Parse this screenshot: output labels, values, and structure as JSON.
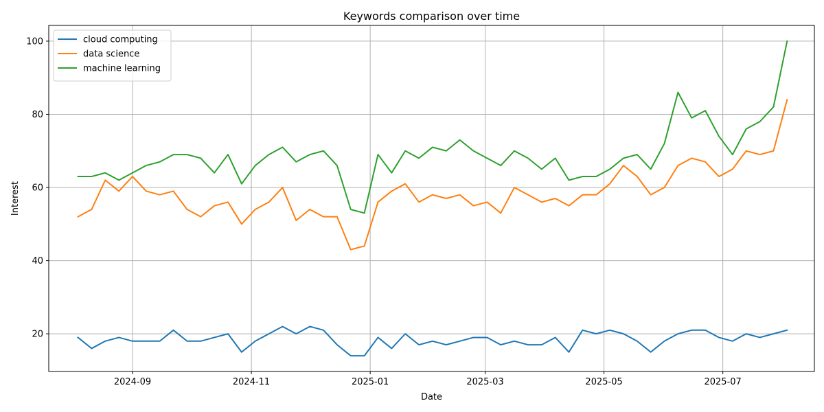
{
  "chart_data": {
    "type": "line",
    "title": "Keywords comparison over time",
    "xlabel": "Date",
    "ylabel": "Interest",
    "x": [
      "2024-08-04",
      "2024-08-11",
      "2024-08-18",
      "2024-08-25",
      "2024-09-01",
      "2024-09-08",
      "2024-09-15",
      "2024-09-22",
      "2024-09-29",
      "2024-10-06",
      "2024-10-13",
      "2024-10-20",
      "2024-10-27",
      "2024-11-03",
      "2024-11-10",
      "2024-11-17",
      "2024-11-24",
      "2024-12-01",
      "2024-12-08",
      "2024-12-15",
      "2024-12-22",
      "2024-12-29",
      "2025-01-05",
      "2025-01-12",
      "2025-01-19",
      "2025-01-26",
      "2025-02-02",
      "2025-02-09",
      "2025-02-16",
      "2025-02-23",
      "2025-03-02",
      "2025-03-09",
      "2025-03-16",
      "2025-03-23",
      "2025-03-30",
      "2025-04-06",
      "2025-04-13",
      "2025-04-20",
      "2025-04-27",
      "2025-05-04",
      "2025-05-11",
      "2025-05-18",
      "2025-05-25",
      "2025-06-01",
      "2025-06-08",
      "2025-06-15",
      "2025-06-22",
      "2025-06-29",
      "2025-07-06",
      "2025-07-13",
      "2025-07-20",
      "2025-07-27",
      "2025-08-03"
    ],
    "series": [
      {
        "name": "cloud computing",
        "color": "#1f77b4",
        "values": [
          19,
          16,
          18,
          19,
          18,
          18,
          18,
          21,
          18,
          18,
          19,
          20,
          15,
          18,
          20,
          22,
          20,
          22,
          21,
          17,
          14,
          14,
          19,
          16,
          20,
          17,
          18,
          17,
          18,
          19,
          19,
          17,
          18,
          17,
          17,
          19,
          15,
          21,
          20,
          21,
          20,
          18,
          15,
          18,
          20,
          21,
          21,
          19,
          18,
          20,
          19,
          20,
          21
        ]
      },
      {
        "name": "data science",
        "color": "#ff7f0e",
        "values": [
          52,
          54,
          62,
          59,
          63,
          59,
          58,
          59,
          54,
          52,
          55,
          56,
          50,
          54,
          56,
          60,
          51,
          54,
          52,
          52,
          43,
          44,
          56,
          59,
          61,
          56,
          58,
          57,
          58,
          55,
          56,
          53,
          60,
          58,
          56,
          57,
          55,
          58,
          58,
          61,
          66,
          63,
          58,
          60,
          66,
          68,
          67,
          63,
          65,
          70,
          69,
          70,
          84
        ]
      },
      {
        "name": "machine learning",
        "color": "#2ca02c",
        "values": [
          63,
          63,
          64,
          62,
          64,
          66,
          67,
          69,
          69,
          68,
          64,
          69,
          61,
          66,
          69,
          71,
          67,
          69,
          70,
          66,
          54,
          53,
          69,
          64,
          70,
          68,
          71,
          70,
          73,
          70,
          68,
          66,
          70,
          68,
          65,
          68,
          62,
          63,
          63,
          65,
          68,
          69,
          65,
          72,
          86,
          79,
          81,
          74,
          69,
          76,
          78,
          82,
          100
        ]
      }
    ],
    "xticks": [
      "2024-09",
      "2024-11",
      "2025-01",
      "2025-03",
      "2025-05",
      "2025-07"
    ],
    "yticks": [
      20,
      40,
      60,
      80,
      100
    ],
    "ylim": [
      9.7,
      104.3
    ],
    "xlim": [
      "2024-07-20",
      "2025-08-17"
    ],
    "grid": true,
    "legend": "top-left"
  }
}
